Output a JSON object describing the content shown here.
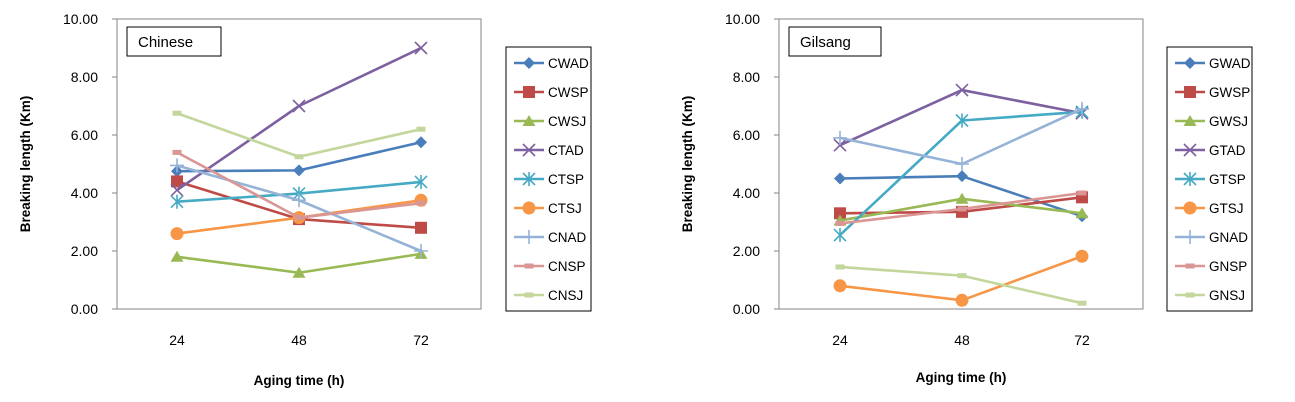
{
  "chart_data": [
    {
      "type": "line",
      "title": "Chinese",
      "xlabel": "Aging time (h)",
      "ylabel": "Breaking length (Km)",
      "ylim": [
        0,
        10
      ],
      "yticks": [
        "0.00",
        "2.00",
        "4.00",
        "6.00",
        "8.00",
        "10.00"
      ],
      "categories": [
        "24",
        "48",
        "72"
      ],
      "series": [
        {
          "name": "CWAD",
          "values": [
            4.75,
            4.78,
            5.75
          ],
          "color": "#4A7EBB",
          "marker": "diamond"
        },
        {
          "name": "CWSP",
          "values": [
            4.4,
            3.1,
            2.8
          ],
          "color": "#BE4B48",
          "marker": "square"
        },
        {
          "name": "CWSJ",
          "values": [
            1.8,
            1.25,
            1.9
          ],
          "color": "#98B954",
          "marker": "triangle"
        },
        {
          "name": "CTAD",
          "values": [
            4.1,
            7.0,
            9.0
          ],
          "color": "#7D60A0",
          "marker": "x"
        },
        {
          "name": "CTSP",
          "values": [
            3.7,
            3.98,
            4.38
          ],
          "color": "#46AAC5",
          "marker": "star"
        },
        {
          "name": "CTSJ",
          "values": [
            2.6,
            3.15,
            3.75
          ],
          "color": "#F79646",
          "marker": "circle"
        },
        {
          "name": "CNAD",
          "values": [
            4.95,
            3.75,
            2.0
          ],
          "color": "#95B3D7",
          "marker": "plus"
        },
        {
          "name": "CNSP",
          "values": [
            5.4,
            3.15,
            3.65
          ],
          "color": "#D99694",
          "marker": "dash"
        },
        {
          "name": "CNSJ",
          "values": [
            6.75,
            5.25,
            6.2
          ],
          "color": "#C3D69B",
          "marker": "dash"
        }
      ]
    },
    {
      "type": "line",
      "title": "Gilsang",
      "xlabel": "Aging time (h)",
      "ylabel": "Breaking length (Km)",
      "ylim": [
        0,
        10
      ],
      "yticks": [
        "0.00",
        "2.00",
        "4.00",
        "6.00",
        "8.00",
        "10.00"
      ],
      "categories": [
        "24",
        "48",
        "72"
      ],
      "series": [
        {
          "name": "GWAD",
          "values": [
            4.5,
            4.58,
            3.2
          ],
          "color": "#4A7EBB",
          "marker": "diamond"
        },
        {
          "name": "GWSP",
          "values": [
            3.3,
            3.35,
            3.85
          ],
          "color": "#BE4B48",
          "marker": "square"
        },
        {
          "name": "GWSJ",
          "values": [
            3.05,
            3.8,
            3.3
          ],
          "color": "#98B954",
          "marker": "triangle"
        },
        {
          "name": "GTAD",
          "values": [
            5.65,
            7.55,
            6.75
          ],
          "color": "#7D60A0",
          "marker": "x"
        },
        {
          "name": "GTSP",
          "values": [
            2.55,
            6.5,
            6.8
          ],
          "color": "#46AAC5",
          "marker": "star"
        },
        {
          "name": "GTSJ",
          "values": [
            0.8,
            0.3,
            1.82
          ],
          "color": "#F79646",
          "marker": "circle"
        },
        {
          "name": "GNAD",
          "values": [
            5.9,
            5.0,
            6.9
          ],
          "color": "#95B3D7",
          "marker": "plus"
        },
        {
          "name": "GNSP",
          "values": [
            2.95,
            3.45,
            4.0
          ],
          "color": "#D99694",
          "marker": "dash"
        },
        {
          "name": "GNSJ",
          "values": [
            1.45,
            1.15,
            0.2
          ],
          "color": "#C3D69B",
          "marker": "dash"
        }
      ]
    }
  ]
}
